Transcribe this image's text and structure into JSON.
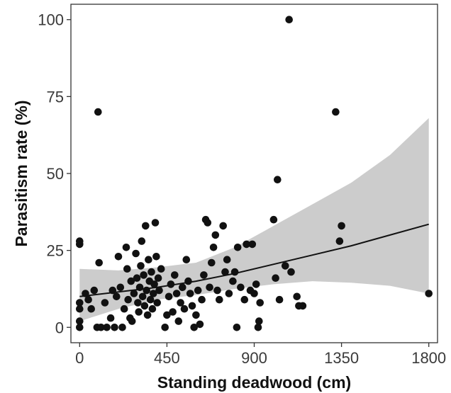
{
  "chart_data": {
    "type": "scatter",
    "xlabel": "Standing deadwood (cm)",
    "ylabel": "Parasitism rate (%)",
    "xlim": [
      -45,
      1845
    ],
    "ylim": [
      -5,
      105
    ],
    "x_ticks": [
      0,
      450,
      900,
      1350,
      1800
    ],
    "y_ticks": [
      0,
      25,
      50,
      75,
      100
    ],
    "grid": false,
    "colors": {
      "points": "#111111",
      "fit_line": "#111111",
      "confidence_band": "#cccccc"
    },
    "points": [
      {
        "x": 0,
        "y": 0
      },
      {
        "x": 0,
        "y": 2
      },
      {
        "x": 0,
        "y": 6
      },
      {
        "x": 0,
        "y": 8
      },
      {
        "x": 0,
        "y": 27
      },
      {
        "x": 0,
        "y": 28
      },
      {
        "x": 30,
        "y": 11
      },
      {
        "x": 45,
        "y": 9
      },
      {
        "x": 60,
        "y": 6
      },
      {
        "x": 75,
        "y": 12
      },
      {
        "x": 90,
        "y": 0
      },
      {
        "x": 95,
        "y": 70
      },
      {
        "x": 100,
        "y": 21
      },
      {
        "x": 110,
        "y": 0
      },
      {
        "x": 130,
        "y": 8
      },
      {
        "x": 140,
        "y": 0
      },
      {
        "x": 160,
        "y": 3
      },
      {
        "x": 170,
        "y": 12
      },
      {
        "x": 180,
        "y": 0
      },
      {
        "x": 190,
        "y": 10
      },
      {
        "x": 200,
        "y": 23
      },
      {
        "x": 210,
        "y": 13
      },
      {
        "x": 220,
        "y": 0
      },
      {
        "x": 230,
        "y": 6
      },
      {
        "x": 240,
        "y": 26
      },
      {
        "x": 245,
        "y": 19
      },
      {
        "x": 250,
        "y": 9
      },
      {
        "x": 260,
        "y": 3
      },
      {
        "x": 265,
        "y": 15
      },
      {
        "x": 270,
        "y": 2
      },
      {
        "x": 280,
        "y": 11
      },
      {
        "x": 290,
        "y": 24
      },
      {
        "x": 295,
        "y": 16
      },
      {
        "x": 300,
        "y": 8
      },
      {
        "x": 305,
        "y": 5
      },
      {
        "x": 310,
        "y": 13
      },
      {
        "x": 315,
        "y": 20
      },
      {
        "x": 320,
        "y": 28
      },
      {
        "x": 325,
        "y": 10
      },
      {
        "x": 330,
        "y": 17
      },
      {
        "x": 335,
        "y": 7
      },
      {
        "x": 340,
        "y": 33
      },
      {
        "x": 345,
        "y": 12
      },
      {
        "x": 350,
        "y": 4
      },
      {
        "x": 355,
        "y": 22
      },
      {
        "x": 360,
        "y": 15
      },
      {
        "x": 365,
        "y": 9
      },
      {
        "x": 370,
        "y": 18
      },
      {
        "x": 375,
        "y": 6
      },
      {
        "x": 380,
        "y": 11
      },
      {
        "x": 385,
        "y": 14
      },
      {
        "x": 390,
        "y": 34
      },
      {
        "x": 395,
        "y": 23
      },
      {
        "x": 400,
        "y": 8
      },
      {
        "x": 405,
        "y": 16
      },
      {
        "x": 410,
        "y": 12
      },
      {
        "x": 420,
        "y": 19
      },
      {
        "x": 440,
        "y": 0
      },
      {
        "x": 450,
        "y": 4
      },
      {
        "x": 460,
        "y": 10
      },
      {
        "x": 470,
        "y": 14
      },
      {
        "x": 480,
        "y": 5
      },
      {
        "x": 490,
        "y": 17
      },
      {
        "x": 500,
        "y": 11
      },
      {
        "x": 510,
        "y": 2
      },
      {
        "x": 520,
        "y": 8
      },
      {
        "x": 530,
        "y": 13
      },
      {
        "x": 540,
        "y": 6
      },
      {
        "x": 550,
        "y": 22
      },
      {
        "x": 560,
        "y": 15
      },
      {
        "x": 570,
        "y": 11
      },
      {
        "x": 580,
        "y": 7
      },
      {
        "x": 590,
        "y": 0
      },
      {
        "x": 600,
        "y": 4
      },
      {
        "x": 610,
        "y": 12
      },
      {
        "x": 620,
        "y": 1
      },
      {
        "x": 630,
        "y": 9
      },
      {
        "x": 640,
        "y": 17
      },
      {
        "x": 650,
        "y": 35
      },
      {
        "x": 660,
        "y": 34
      },
      {
        "x": 670,
        "y": 13
      },
      {
        "x": 680,
        "y": 21
      },
      {
        "x": 690,
        "y": 26
      },
      {
        "x": 700,
        "y": 30
      },
      {
        "x": 710,
        "y": 12
      },
      {
        "x": 720,
        "y": 9
      },
      {
        "x": 740,
        "y": 33
      },
      {
        "x": 750,
        "y": 18
      },
      {
        "x": 760,
        "y": 22
      },
      {
        "x": 770,
        "y": 11
      },
      {
        "x": 790,
        "y": 15
      },
      {
        "x": 800,
        "y": 18
      },
      {
        "x": 810,
        "y": 0
      },
      {
        "x": 815,
        "y": 26
      },
      {
        "x": 830,
        "y": 13
      },
      {
        "x": 850,
        "y": 9
      },
      {
        "x": 860,
        "y": 27
      },
      {
        "x": 880,
        "y": 12
      },
      {
        "x": 890,
        "y": 27
      },
      {
        "x": 900,
        "y": 11
      },
      {
        "x": 910,
        "y": 14
      },
      {
        "x": 920,
        "y": 0
      },
      {
        "x": 925,
        "y": 2
      },
      {
        "x": 930,
        "y": 8
      },
      {
        "x": 1000,
        "y": 35
      },
      {
        "x": 1010,
        "y": 16
      },
      {
        "x": 1020,
        "y": 48
      },
      {
        "x": 1030,
        "y": 9
      },
      {
        "x": 1060,
        "y": 20
      },
      {
        "x": 1080,
        "y": 100
      },
      {
        "x": 1090,
        "y": 18
      },
      {
        "x": 1120,
        "y": 10
      },
      {
        "x": 1130,
        "y": 7
      },
      {
        "x": 1150,
        "y": 7
      },
      {
        "x": 1320,
        "y": 70
      },
      {
        "x": 1340,
        "y": 28
      },
      {
        "x": 1350,
        "y": 33
      },
      {
        "x": 1800,
        "y": 11
      }
    ],
    "fit": {
      "x": [
        0,
        200,
        400,
        600,
        800,
        1000,
        1200,
        1400,
        1600,
        1800
      ],
      "y": [
        10,
        11.5,
        13,
        15,
        17.5,
        20.5,
        23.5,
        26.5,
        30,
        33.5
      ]
    },
    "confidence_band": {
      "x": [
        0,
        200,
        400,
        600,
        800,
        1000,
        1200,
        1400,
        1600,
        1800
      ],
      "lower": [
        2,
        6,
        9,
        10.5,
        12.5,
        14,
        15,
        14.5,
        13.5,
        11
      ],
      "upper": [
        19,
        18.5,
        19.5,
        21,
        26,
        33,
        40,
        47,
        56,
        68
      ]
    }
  }
}
